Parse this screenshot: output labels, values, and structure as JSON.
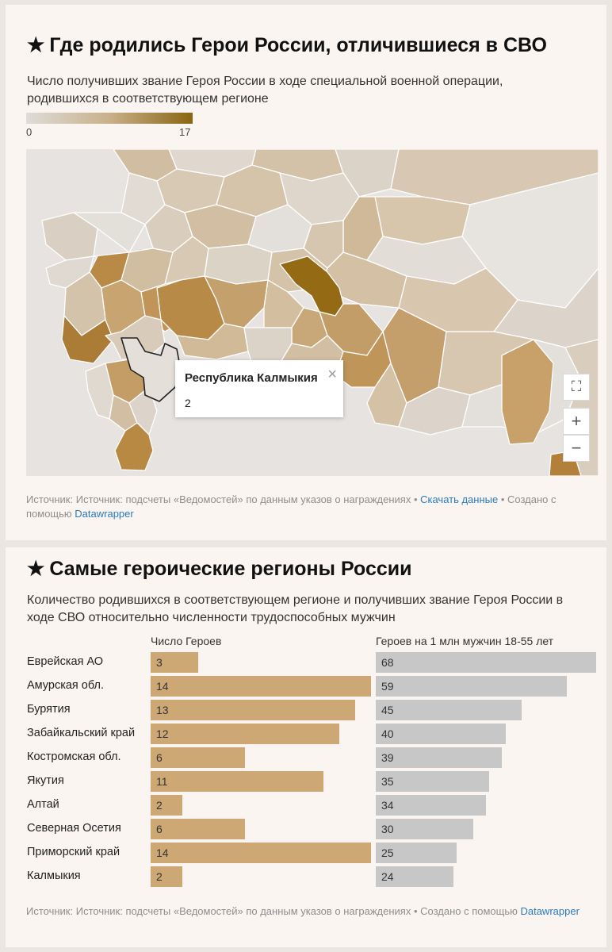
{
  "map_card": {
    "title": "Где родились Герои России, отличившиеся в СВО",
    "subtitle": "Число получивших звание Героя России в ходе специальной военной операции, родившихся в соответствующем регионе",
    "legend": {
      "min": "0",
      "max": "17",
      "color_low": "#dedcd8",
      "color_high": "#8a6512"
    },
    "tooltip": {
      "title": "Республика Калмыкия",
      "value": "2",
      "close_icon": "×"
    },
    "controls": {
      "fullscreen": "⛶",
      "zoom_in": "+",
      "zoom_out": "−"
    },
    "source": {
      "text": "Источник: Источник: подсчеты «Ведомостей» по данным указов о награждениях • ",
      "download": "Скачать данные",
      "made_with": " • Создано с помощью ",
      "dw": "Datawrapper"
    }
  },
  "chart_data": {
    "type": "bar",
    "title": "Самые героические регионы России",
    "subtitle": "Количество родившихся в соответствующем регионе и получивших звание Героя России в ходе СВО относительно численности трудоспособных мужчин",
    "categories": [
      "Еврейская АО",
      "Амурская обл.",
      "Бурятия",
      "Забайкальский край",
      "Костромская обл.",
      "Якутия",
      "Алтай",
      "Северная Осетия",
      "Приморский край",
      "Калмыкия"
    ],
    "series": [
      {
        "name": "Число Героев",
        "values": [
          3,
          14,
          13,
          12,
          6,
          11,
          2,
          6,
          14,
          2
        ],
        "max": 14,
        "color": "#cda874"
      },
      {
        "name": "Героев на 1 млн мужчин 18-55 лет",
        "values": [
          68,
          59,
          45,
          40,
          39,
          35,
          34,
          30,
          25,
          24
        ],
        "max": 68,
        "color": "#c7c7c7"
      }
    ],
    "source": {
      "text": "Источник: Источник: подсчеты «Ведомостей» по данным указов о награждениях • Создано с помощью ",
      "dw": "Datawrapper"
    }
  }
}
